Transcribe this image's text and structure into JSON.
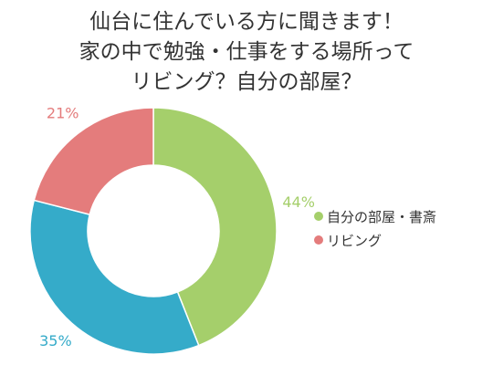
{
  "title": {
    "line1": "仙台に住んでいる方に聞きます！",
    "line2": "家の中で勉強・仕事をする場所って",
    "line3": "リビング？自分の部屋？"
  },
  "chart_data": {
    "type": "pie",
    "donut": true,
    "slices": [
      {
        "label": "自分の部屋・書斎",
        "value": 44,
        "display": "44%",
        "color": "#a5cf6b"
      },
      {
        "label": "",
        "value": 35,
        "display": "35%",
        "color": "#35abc9"
      },
      {
        "label": "リビング",
        "value": 21,
        "display": "21%",
        "color": "#e47c7c"
      }
    ],
    "legend": {
      "position": "right",
      "items": [
        {
          "label": "自分の部屋・書斎",
          "color": "#a5cf6b"
        },
        {
          "label": "リビング",
          "color": "#e47c7c"
        }
      ]
    }
  }
}
